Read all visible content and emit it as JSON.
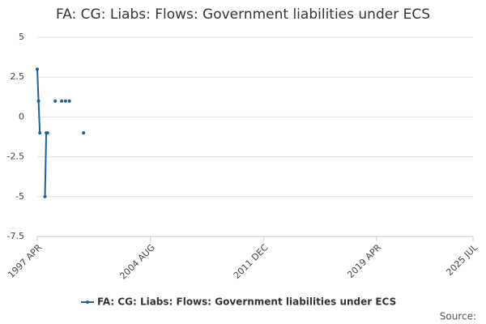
{
  "chart_data": {
    "type": "line",
    "title": "FA: CG: Liabs: Flows: Government liabilities under ECS",
    "x": [
      "1997 APR",
      "1997 MAY",
      "1997 JUN",
      "1997 JUL",
      "1997 OCT",
      "1997 NOV",
      "1997 DEC",
      "1998 JAN",
      "1998 JUN",
      "1998 JUL",
      "1998 NOV",
      "1998 DEC",
      "1999 FEB",
      "1999 MAR",
      "1999 MAY",
      "1999 JUN",
      "2000 APR"
    ],
    "series": [
      {
        "name": "FA: CG: Liabs: Flows: Government liabilities under ECS",
        "color": "#206095",
        "values": [
          3,
          1,
          -1,
          null,
          -5,
          -1,
          -1,
          null,
          1,
          null,
          1,
          null,
          1,
          null,
          1,
          null,
          -1
        ]
      }
    ],
    "xlim": [
      "1997 APR",
      "2025 JUL"
    ],
    "xticks": [
      "1997 APR",
      "2004 AUG",
      "2011 DEC",
      "2019 APR",
      "2025 JUL"
    ],
    "ylim": [
      -7.5,
      5
    ],
    "yticks": [
      5,
      2.5,
      0,
      -2.5,
      -5,
      -7.5
    ],
    "grid": true,
    "legend": "bottom",
    "source": "Source:"
  }
}
